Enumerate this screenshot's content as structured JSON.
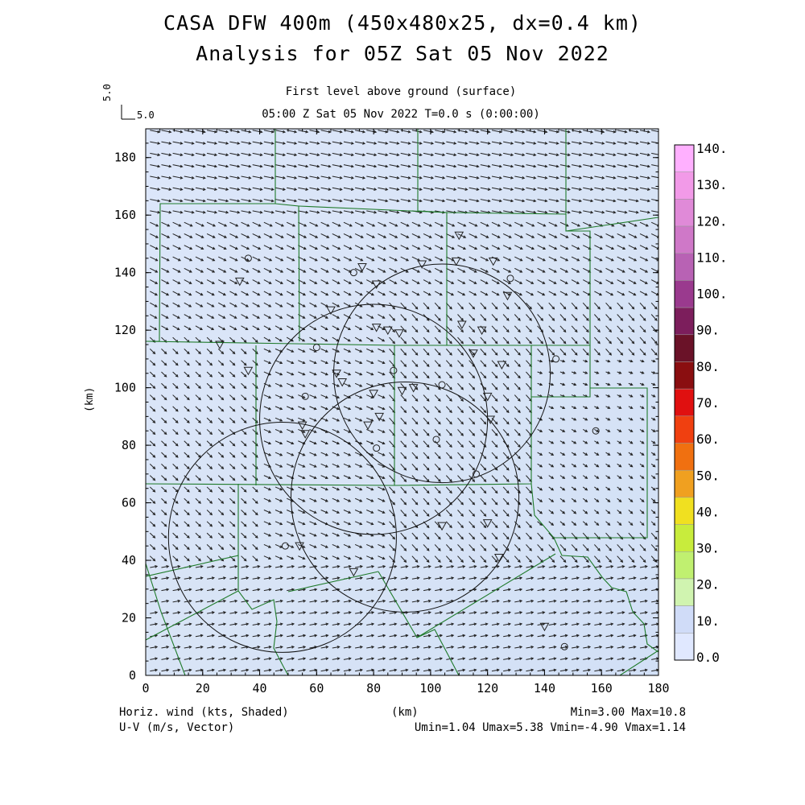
{
  "title": {
    "line1": "CASA DFW 400m (450x480x25, dx=0.4 km)",
    "line2": "Analysis for 05Z Sat 05 Nov 2022"
  },
  "subtitle": {
    "level": "First level above ground (surface)",
    "time": "05:00 Z Sat 05 Nov 2022    T=0.0 s (0:00:00)"
  },
  "reference_vector": {
    "label_v": "5.0",
    "label_h": "5.0"
  },
  "footer": {
    "left1": "Horiz. wind (kts, Shaded)",
    "left2": "U-V (m/s, Vector)",
    "center": "(km)",
    "right1": "Min=3.00 Max=10.8",
    "right2": "Umin=1.04 Umax=5.38 Vmin=-4.90 Vmax=1.14"
  },
  "map": {
    "x_axis": {
      "label": "(km)",
      "range": [
        0,
        180
      ],
      "ticks": [
        "0",
        "20",
        "40",
        "60",
        "80",
        "100",
        "120",
        "140",
        "160",
        "180"
      ]
    },
    "y_axis": {
      "label": "(km)",
      "range": [
        0,
        190
      ],
      "ticks": [
        "0",
        "20",
        "40",
        "60",
        "80",
        "100",
        "120",
        "140",
        "160",
        "180"
      ]
    },
    "radar_rings": [
      {
        "cx": 104,
        "cy": 105,
        "r": 38
      },
      {
        "cx": 80,
        "cy": 89,
        "r": 40
      },
      {
        "cx": 48,
        "cy": 48,
        "r": 40
      },
      {
        "cx": 91,
        "cy": 62,
        "r": 40
      }
    ],
    "color_scale": {
      "ticks": [
        "140.",
        "130.",
        "120.",
        "110.",
        "100.",
        "90.",
        "80.",
        "70.",
        "60.",
        "50.",
        "40.",
        "30.",
        "20.",
        "10.",
        "0.0"
      ],
      "colors": [
        "#ffb0ff",
        "#f29ae8",
        "#e08ad8",
        "#cf78c8",
        "#b862b4",
        "#9a3a8e",
        "#7c1e5c",
        "#6a1228",
        "#8a0e10",
        "#e01010",
        "#f04010",
        "#f07010",
        "#f0a020",
        "#f0e020",
        "#c8ec3c",
        "#c0f070",
        "#d0f4b0",
        "#d0dcf8",
        "#e0e8ff"
      ]
    },
    "markers": [
      {
        "type": "tri",
        "x": 110,
        "y": 153
      },
      {
        "type": "circ",
        "x": 36,
        "y": 145
      },
      {
        "type": "tri",
        "x": 33,
        "y": 137
      },
      {
        "type": "circ",
        "x": 73,
        "y": 140
      },
      {
        "type": "tri",
        "x": 76,
        "y": 142
      },
      {
        "type": "tri",
        "x": 81,
        "y": 136
      },
      {
        "type": "tri",
        "x": 97,
        "y": 143
      },
      {
        "type": "tri",
        "x": 109,
        "y": 144
      },
      {
        "type": "tri",
        "x": 122,
        "y": 144
      },
      {
        "type": "circ",
        "x": 128,
        "y": 138
      },
      {
        "type": "tri",
        "x": 127,
        "y": 132
      },
      {
        "type": "tri",
        "x": 65,
        "y": 127
      },
      {
        "type": "tri",
        "x": 81,
        "y": 121
      },
      {
        "type": "tri",
        "x": 85,
        "y": 120
      },
      {
        "type": "tri",
        "x": 89,
        "y": 119
      },
      {
        "type": "tri",
        "x": 111,
        "y": 122
      },
      {
        "type": "tri",
        "x": 118,
        "y": 120
      },
      {
        "type": "tri",
        "x": 26,
        "y": 115
      },
      {
        "type": "circ",
        "x": 60,
        "y": 114
      },
      {
        "type": "tri",
        "x": 115,
        "y": 112
      },
      {
        "type": "circ",
        "x": 144,
        "y": 110
      },
      {
        "type": "tri",
        "x": 36,
        "y": 106
      },
      {
        "type": "tri",
        "x": 125,
        "y": 108
      },
      {
        "type": "circ",
        "x": 87,
        "y": 106
      },
      {
        "type": "tri",
        "x": 67,
        "y": 105
      },
      {
        "type": "tri",
        "x": 69,
        "y": 102
      },
      {
        "type": "circ",
        "x": 104,
        "y": 101
      },
      {
        "type": "circ",
        "x": 56,
        "y": 97
      },
      {
        "type": "tri",
        "x": 80,
        "y": 98
      },
      {
        "type": "tri",
        "x": 90,
        "y": 99
      },
      {
        "type": "tri",
        "x": 94,
        "y": 100
      },
      {
        "type": "tri",
        "x": 120,
        "y": 97
      },
      {
        "type": "tri",
        "x": 82,
        "y": 90
      },
      {
        "type": "tri",
        "x": 78,
        "y": 87
      },
      {
        "type": "tri",
        "x": 55,
        "y": 87
      },
      {
        "type": "tri",
        "x": 56,
        "y": 84
      },
      {
        "type": "tri",
        "x": 121,
        "y": 89
      },
      {
        "type": "circ",
        "x": 102,
        "y": 82
      },
      {
        "type": "circ",
        "x": 81,
        "y": 79
      },
      {
        "type": "circ",
        "x": 158,
        "y": 85
      },
      {
        "type": "circ",
        "x": 116,
        "y": 70
      },
      {
        "type": "tri",
        "x": 104,
        "y": 52
      },
      {
        "type": "tri",
        "x": 120,
        "y": 53
      },
      {
        "type": "circ",
        "x": 49,
        "y": 45
      },
      {
        "type": "tri",
        "x": 54,
        "y": 45
      },
      {
        "type": "tri",
        "x": 124,
        "y": 41
      },
      {
        "type": "tri",
        "x": 73,
        "y": 36
      },
      {
        "type": "tri",
        "x": 140,
        "y": 17
      },
      {
        "type": "circ",
        "x": 147,
        "y": 10
      }
    ]
  }
}
